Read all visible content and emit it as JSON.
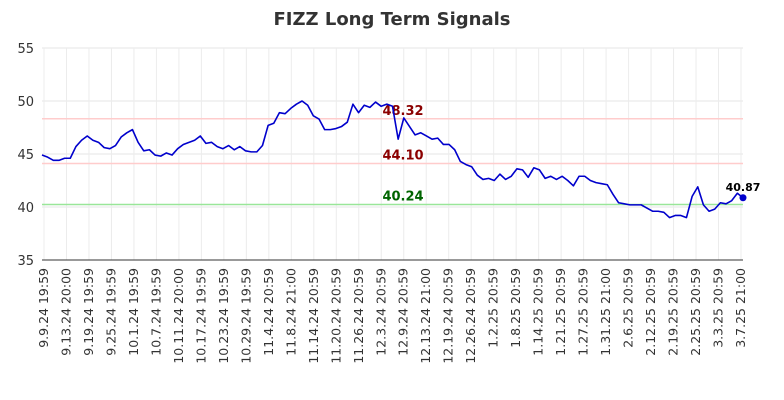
{
  "chart_data": {
    "type": "line",
    "title": "FIZZ Long Term Signals",
    "xlabel": "",
    "ylabel": "",
    "ylim": [
      35,
      55
    ],
    "yticks": [
      35,
      40,
      45,
      50,
      55
    ],
    "grid": true,
    "legend": "none",
    "x_tick_labels": [
      "9.9.24 19:59",
      "9.13.24 20:00",
      "9.19.24 19:59",
      "9.25.24 19:59",
      "10.1.24 19:59",
      "10.7.24 19:59",
      "10.11.24 20:00",
      "10.17.24 19:59",
      "10.23.24 19:59",
      "10.29.24 19:59",
      "11.4.24 20:59",
      "11.8.24 21:00",
      "11.14.24 20:59",
      "11.20.24 20:59",
      "11.26.24 20:59",
      "12.3.24 20:59",
      "12.9.24 20:59",
      "12.13.24 21:00",
      "12.19.24 20:59",
      "12.26.24 20:59",
      "1.2.25 20:59",
      "1.8.25 20:59",
      "1.14.25 20:59",
      "1.21.25 20:59",
      "1.27.25 20:59",
      "1.31.25 21:00",
      "2.6.25 20:59",
      "2.12.25 20:59",
      "2.19.25 20:59",
      "2.25.25 20:59",
      "3.3.25 20:59",
      "3.7.25 21:00"
    ],
    "series": [
      {
        "color": "#0000cc",
        "values": [
          44.9,
          44.7,
          44.4,
          44.4,
          44.6,
          44.6,
          45.7,
          46.3,
          46.7,
          46.3,
          46.1,
          45.6,
          45.5,
          45.8,
          46.6,
          47.0,
          47.3,
          46.1,
          45.3,
          45.4,
          44.9,
          44.8,
          45.1,
          44.9,
          45.5,
          45.9,
          46.1,
          46.3,
          46.7,
          46.0,
          46.1,
          45.7,
          45.5,
          45.8,
          45.4,
          45.7,
          45.3,
          45.2,
          45.2,
          45.8,
          47.7,
          47.9,
          48.9,
          48.8,
          49.3,
          49.7,
          50.0,
          49.6,
          48.6,
          48.3,
          47.3,
          47.3,
          47.4,
          47.6,
          48.0,
          49.7,
          48.9,
          49.6,
          49.4,
          49.9,
          49.5,
          49.7,
          49.5,
          46.4,
          48.4,
          47.6,
          46.8,
          47.0,
          46.7,
          46.4,
          46.5,
          45.9,
          45.9,
          45.4,
          44.3,
          44.0,
          43.8,
          43.0,
          42.6,
          42.7,
          42.5,
          43.1,
          42.6,
          42.9,
          43.6,
          43.5,
          42.8,
          43.7,
          43.5,
          42.7,
          42.9,
          42.6,
          42.9,
          42.5,
          42.0,
          42.9,
          42.9,
          42.5,
          42.3,
          42.2,
          42.1,
          41.2,
          40.4,
          40.3,
          40.2,
          40.2,
          40.2,
          39.9,
          39.6,
          39.6,
          39.5,
          39.0,
          39.2,
          39.2,
          39.0,
          41.0,
          41.9,
          40.2,
          39.6,
          39.8,
          40.4,
          40.3,
          40.6,
          41.3,
          40.87
        ]
      }
    ],
    "signal_lines": [
      {
        "value": 48.32,
        "label": "48.32",
        "line_color": "#ffcccc",
        "text_color": "#8b0000"
      },
      {
        "value": 44.1,
        "label": "44.10",
        "line_color": "#ffcccc",
        "text_color": "#8b0000"
      },
      {
        "value": 40.24,
        "label": "40.24",
        "line_color": "#99e699",
        "text_color": "#006400"
      }
    ],
    "last_point": {
      "value": 40.87,
      "label": "40.87"
    }
  }
}
